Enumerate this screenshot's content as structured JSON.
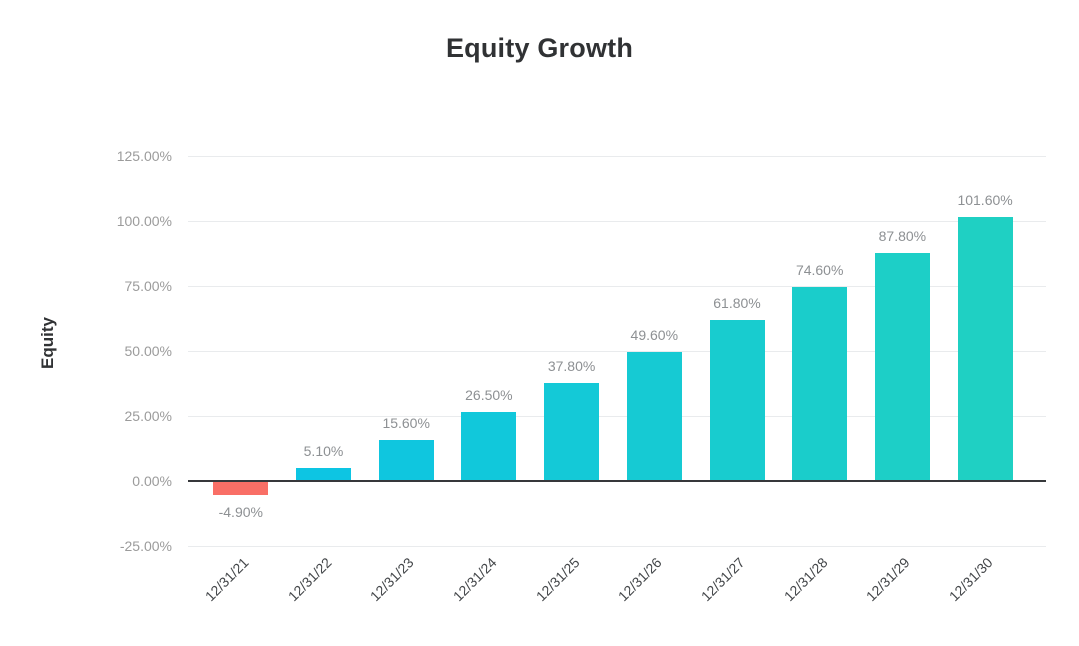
{
  "chart_data": {
    "type": "bar",
    "title": "Equity Growth",
    "ylabel": "Equity",
    "xlabel": "",
    "categories": [
      "12/31/21",
      "12/31/22",
      "12/31/23",
      "12/31/24",
      "12/31/25",
      "12/31/26",
      "12/31/27",
      "12/31/28",
      "12/31/29",
      "12/31/30"
    ],
    "values": [
      -4.9,
      5.1,
      15.6,
      26.5,
      37.8,
      49.6,
      61.8,
      74.6,
      87.8,
      101.6
    ],
    "value_labels": [
      "-4.90%",
      "5.10%",
      "15.60%",
      "26.50%",
      "37.80%",
      "49.60%",
      "61.80%",
      "74.60%",
      "87.80%",
      "101.60%"
    ],
    "bar_colors": [
      "#f96f66",
      "#0dc5e3",
      "#0fc6df",
      "#11c8db",
      "#14c9d7",
      "#16cad3",
      "#18cccf",
      "#1acdcb",
      "#1dcfc7",
      "#1fd0c3"
    ],
    "y_ticks": [
      "125.00%",
      "100.00%",
      "75.00%",
      "50.00%",
      "25.00%",
      "0.00%",
      "-25.00%"
    ],
    "y_tick_values": [
      125,
      100,
      75,
      50,
      25,
      0,
      -25
    ],
    "ylim": [
      -25,
      125
    ],
    "grid": "horizontal",
    "legend": "none",
    "colors": {
      "negative_bar": "#f96f66",
      "positive_bar_start": "#0dc5e3",
      "positive_bar_end": "#1fd0c3",
      "axis_line": "#36383b",
      "gridline": "#e9ebed",
      "tick_text": "#9b9b9b",
      "value_text": "#8d9093",
      "category_text": "#44474a",
      "title_text": "#303234"
    }
  }
}
